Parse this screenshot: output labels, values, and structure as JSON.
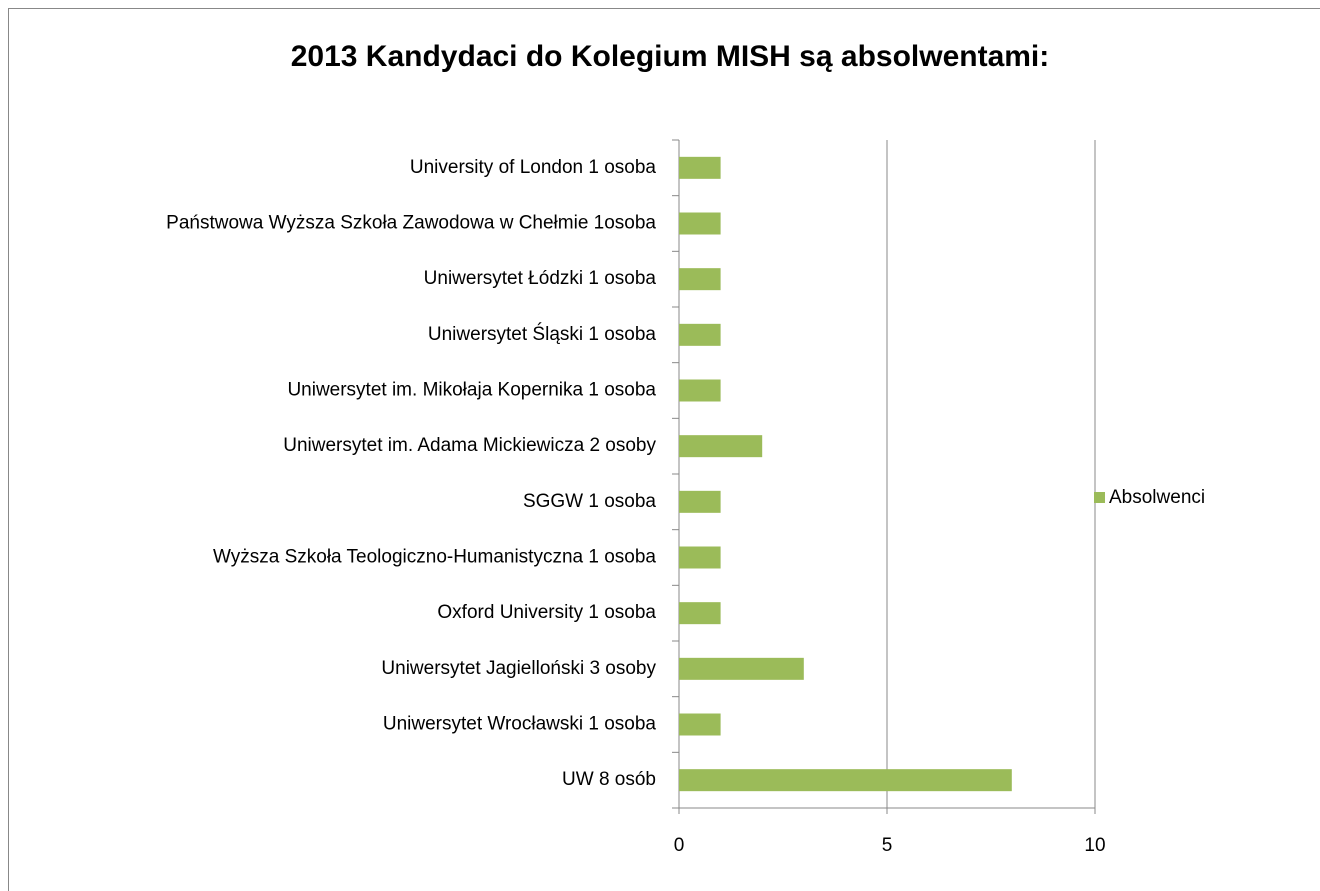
{
  "chart_data": {
    "type": "bar",
    "orientation": "horizontal",
    "title": "2013 Kandydaci do Kolegium MISH są absolwentami:",
    "categories": [
      "University of London 1 osoba",
      "Państwowa Wyższa Szkoła Zawodowa w Chełmie 1osoba",
      "Uniwersytet Łódzki 1 osoba",
      "Uniwersytet Śląski  1 osoba",
      "Uniwersytet im. Mikołaja Kopernika 1 osoba",
      "Uniwersytet im. Adama Mickiewicza 2 osoby",
      "SGGW 1 osoba",
      "Wyższa Szkoła Teologiczno-Humanistyczna 1 osoba",
      "Oxford University 1 osoba",
      "Uniwersytet Jagielloński 3 osoby",
      "Uniwersytet Wrocławski  1 osoba",
      "UW  8 osób"
    ],
    "series": [
      {
        "name": "Absolwenci",
        "color": "#9bbb59",
        "values": [
          1,
          1,
          1,
          1,
          1,
          2,
          1,
          1,
          1,
          3,
          1,
          8
        ]
      }
    ],
    "xlim": [
      0,
      10
    ],
    "xticks": [
      0,
      5,
      10
    ],
    "grid": true,
    "legend": "right"
  }
}
